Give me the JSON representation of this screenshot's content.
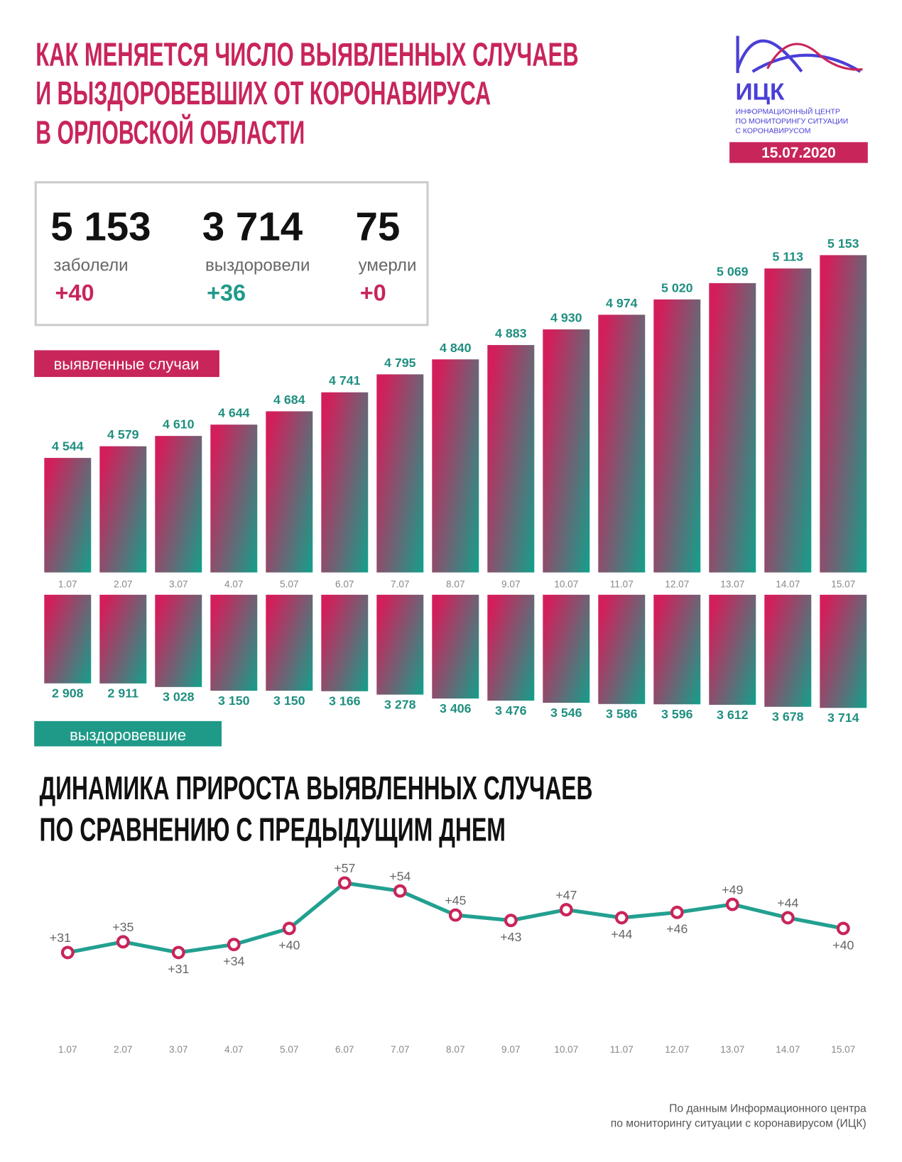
{
  "header": {
    "title_lines": [
      "КАК МЕНЯЕТСЯ ЧИСЛО ВЫЯВЛЕННЫХ СЛУЧАЕВ",
      "И ВЫЗДОРОВЕВШИХ ОТ КОРОНАВИРУСА",
      "В ОРЛОВСКОЙ ОБЛАСТИ"
    ],
    "logo": {
      "abbr": "ИЦК",
      "lines": [
        "ИНФОРМАЦИОННЫЙ ЦЕНТР",
        "ПО МОНИТОРИНГУ СИТУАЦИИ",
        "С КОРОНАВИРУСОМ"
      ],
      "date": "15.07.2020"
    }
  },
  "stats": [
    {
      "value": "5 153",
      "label": "заболели",
      "delta": "+40",
      "color": "#c8255a"
    },
    {
      "value": "3 714",
      "label": "выздоровели",
      "delta": "+36",
      "color": "#1f9a88"
    },
    {
      "value": "75",
      "label": "умерли",
      "delta": "+0",
      "color": "#c8255a"
    }
  ],
  "chart_data": [
    {
      "type": "bar",
      "label": "выявленные случаи",
      "direction": "up",
      "colors": [
        "#d21f5b",
        "#13a08b"
      ],
      "label_color": "#c8255a",
      "value_color": "#1f8f80",
      "categories": [
        "1.07",
        "2.07",
        "3.07",
        "4.07",
        "5.07",
        "6.07",
        "7.07",
        "8.07",
        "9.07",
        "10.07",
        "11.07",
        "12.07",
        "13.07",
        "14.07",
        "15.07"
      ],
      "values": [
        4544,
        4579,
        4610,
        4644,
        4684,
        4741,
        4795,
        4840,
        4883,
        4930,
        4974,
        5020,
        5069,
        5113,
        5153
      ],
      "value_labels": [
        "4 544",
        "4 579",
        "4 610",
        "4 644",
        "4 684",
        "4 741",
        "4 795",
        "4 840",
        "4 883",
        "4 930",
        "4 974",
        "5 020",
        "5 069",
        "5 113",
        "5 153"
      ],
      "ylim": [
        4200,
        5200
      ]
    },
    {
      "type": "bar",
      "label": "выздоровевшие",
      "direction": "down",
      "colors": [
        "#d21f5b",
        "#13a08b"
      ],
      "label_color": "#1f9a88",
      "value_color": "#1f8f80",
      "values": [
        2908,
        2911,
        3028,
        3150,
        3150,
        3166,
        3278,
        3406,
        3476,
        3546,
        3586,
        3596,
        3612,
        3678,
        3714
      ],
      "value_labels": [
        "2 908",
        "2 911",
        "3 028",
        "3 150",
        "3 150",
        "3 166",
        "3 278",
        "3 406",
        "3 476",
        "3 546",
        "3 586",
        "3 596",
        "3 612",
        "3 678",
        "3 714"
      ],
      "ylim": [
        0,
        4000
      ]
    },
    {
      "type": "line",
      "title_lines": [
        "ДИНАМИКА ПРИРОСТА ВЫЯВЛЕННЫХ СЛУЧАЕВ",
        "ПО СРАВНЕНИЮ С ПРЕДЫДУЩИМ ДНЕМ"
      ],
      "color": "#22a090",
      "marker_color": "#c8255a",
      "categories": [
        "1.07",
        "2.07",
        "3.07",
        "4.07",
        "5.07",
        "6.07",
        "7.07",
        "8.07",
        "9.07",
        "10.07",
        "11.07",
        "12.07",
        "13.07",
        "14.07",
        "15.07"
      ],
      "values": [
        31,
        35,
        31,
        34,
        40,
        57,
        54,
        45,
        43,
        47,
        44,
        46,
        49,
        44,
        40
      ],
      "value_labels": [
        "+31",
        "+35",
        "+31",
        "+34",
        "+40",
        "+57",
        "+54",
        "+45",
        "+43",
        "+47",
        "+44",
        "+46",
        "+49",
        "+44",
        "+40"
      ],
      "ylim": [
        0,
        60
      ]
    }
  ],
  "footer": [
    "По данным Информационного центра",
    "по мониторингу ситуации с коронавирусом (ИЦК)"
  ]
}
